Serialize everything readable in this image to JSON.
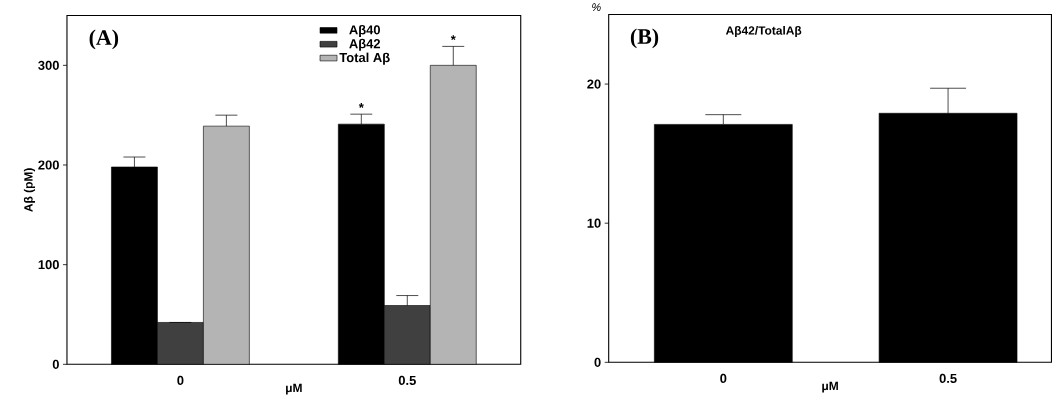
{
  "chart_data": [
    {
      "type": "bar",
      "categories": [
        "0",
        "0.5"
      ],
      "xlabel": "μM",
      "ylabel": "Aβ (pM)",
      "ylim": [
        0,
        350
      ],
      "yticks": [
        0,
        100,
        200,
        300
      ],
      "legend": "top right",
      "series": [
        {
          "name": "Aβ40",
          "color": "#000000",
          "values": [
            198,
            241
          ],
          "errors": [
            10,
            10
          ],
          "value_labels": [
            null,
            "*"
          ]
        },
        {
          "name": "Aβ42",
          "color": "#404040",
          "values": [
            42,
            59
          ],
          "errors": [
            null,
            10
          ]
        },
        {
          "name": "Total Aβ",
          "color": "#b4b4b4",
          "values": [
            239,
            300
          ],
          "errors": [
            11,
            19
          ],
          "value_labels": [
            null,
            "*"
          ]
        }
      ],
      "annotations": [
        "(A)"
      ]
    },
    {
      "type": "bar",
      "title": "Aβ42/TotalAβ",
      "categories": [
        "0",
        "0.5"
      ],
      "xlabel": "μM",
      "ylabel": "%",
      "ylim": [
        0,
        25
      ],
      "yticks": [
        0,
        10,
        20
      ],
      "series": [
        {
          "color": "#000000",
          "values": [
            17.1,
            17.9
          ],
          "errors": [
            0.7,
            1.8
          ]
        }
      ],
      "annotations": [
        "(B)"
      ]
    }
  ]
}
